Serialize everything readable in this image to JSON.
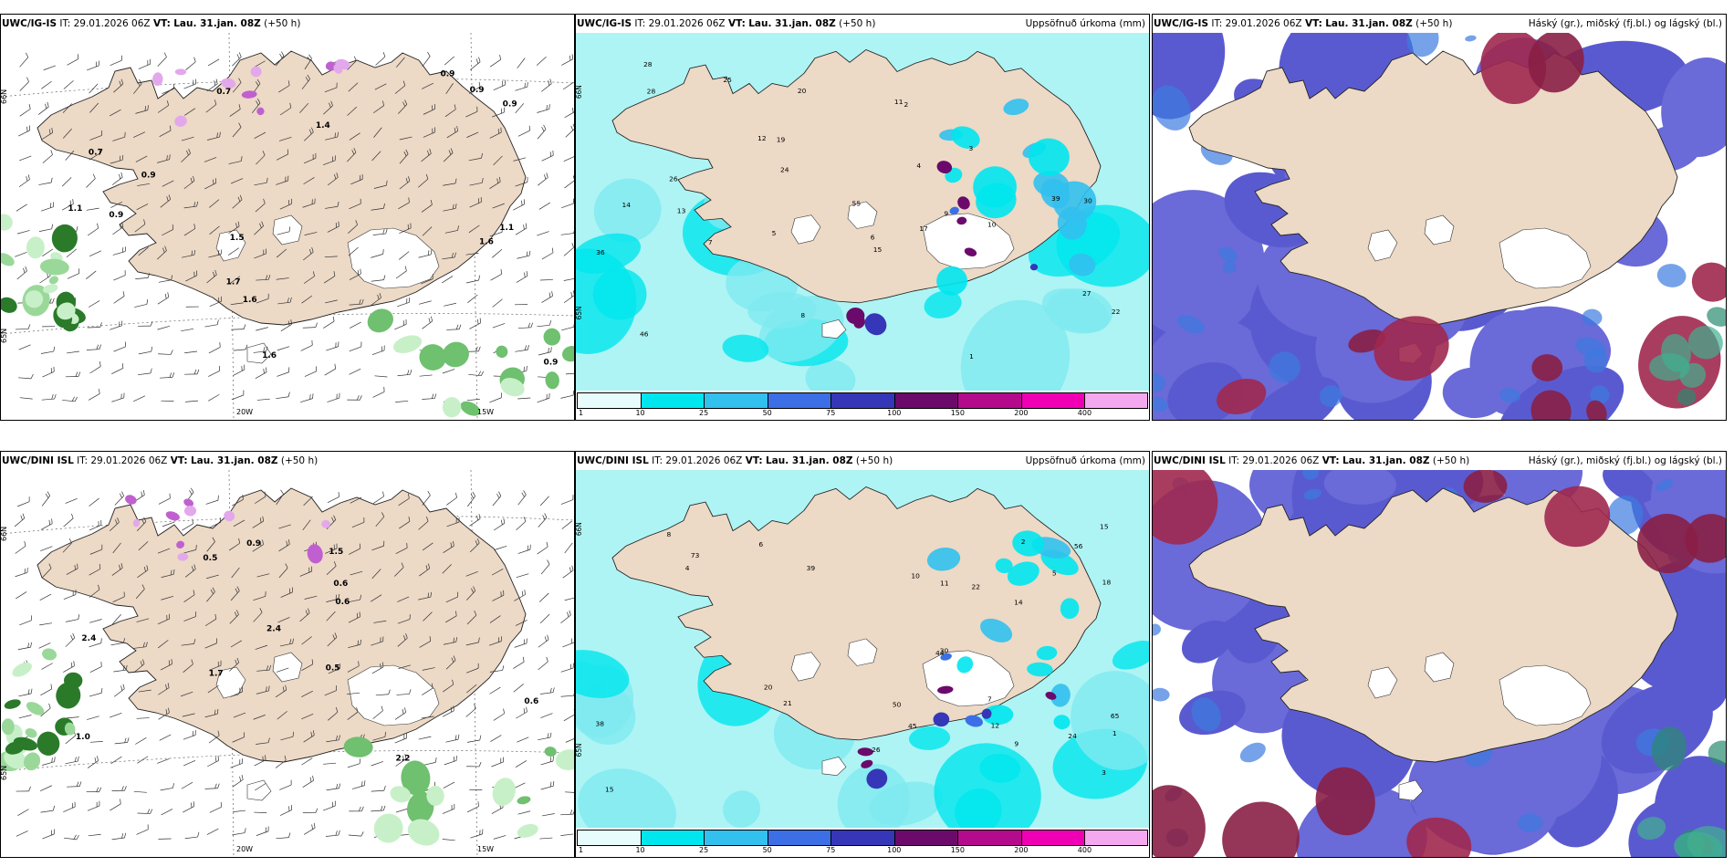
{
  "panels": [
    {
      "id": "ig-wind",
      "model": "UWC/IG-IS",
      "it_label": "IT: 29.01.2026 06Z",
      "vt_prefix": "VT:",
      "vt_value": "Lau. 31.jan. 08Z",
      "lead": "(+50 h)",
      "right_label": "",
      "axis_labels": [
        "66N",
        "65N",
        "20W",
        "15W"
      ],
      "value_labels": [
        "0.9",
        "1.6",
        "0.7",
        "0.9",
        "0.7",
        "1.4",
        "0.9",
        "1.1",
        "1.6",
        "1.5",
        "0.9",
        "1.7",
        "0.9",
        "0.9",
        "1.6",
        "1.1"
      ]
    },
    {
      "id": "ig-precip",
      "model": "UWC/IG-IS",
      "it_label": "IT: 29.01.2026 06Z",
      "vt_prefix": "VT:",
      "vt_value": "Lau. 31.jan. 08Z",
      "lead": "(+50 h)",
      "right_label": "Uppsöfnuð úrkoma (mm)",
      "axis_labels": [
        "66N",
        "65N"
      ],
      "value_labels": [
        "3",
        "2",
        "1",
        "4",
        "5",
        "11",
        "8",
        "10",
        "15",
        "20",
        "26",
        "27",
        "30",
        "39",
        "46",
        "19",
        "25",
        "24",
        "22",
        "17",
        "14",
        "13",
        "12",
        "6",
        "7",
        "9",
        "28",
        "55",
        "36",
        "28"
      ],
      "colorbar_labels": [
        "1",
        "10",
        "25",
        "50",
        "75",
        "100",
        "150",
        "200",
        "400"
      ]
    },
    {
      "id": "ig-cloud",
      "model": "UWC/IG-IS",
      "it_label": "IT: 29.01.2026 06Z",
      "vt_prefix": "VT:",
      "vt_value": "Lau. 31.jan. 08Z",
      "lead": "(+50 h)",
      "right_label": "Háský (gr.), miðský (fj.bl.) og lágský (bl.)"
    },
    {
      "id": "dini-wind",
      "model": "UWC/DINI ISL",
      "it_label": "IT: 29.01.2026 06Z",
      "vt_prefix": "VT:",
      "vt_value": "Lau. 31.jan. 08Z",
      "lead": "(+50 h)",
      "right_label": "",
      "axis_labels": [
        "66N",
        "65N",
        "20W",
        "15W"
      ],
      "value_labels": [
        "0.6",
        "1.7",
        "2.4",
        "2.2",
        "0.6",
        "0.5",
        "0.6",
        "0.9",
        "0.5",
        "1.5",
        "2.4",
        "1.0"
      ]
    },
    {
      "id": "dini-precip",
      "model": "UWC/DINI ISL",
      "it_label": "IT: 29.01.2026 06Z",
      "vt_prefix": "VT:",
      "vt_value": "Lau. 31.jan. 08Z",
      "lead": "(+50 h)",
      "right_label": "Uppsöfnuð úrkoma (mm)",
      "axis_labels": [
        "66N",
        "65N"
      ],
      "value_labels": [
        "2",
        "3",
        "4",
        "5",
        "6",
        "7",
        "8",
        "11",
        "12",
        "15",
        "20",
        "26",
        "30",
        "44",
        "39",
        "50",
        "18",
        "22",
        "15",
        "10",
        "14",
        "21",
        "24",
        "65",
        "56",
        "73",
        "45",
        "38",
        "9",
        "1"
      ],
      "colorbar_labels": [
        "1",
        "10",
        "25",
        "50",
        "75",
        "100",
        "150",
        "200",
        "400"
      ]
    },
    {
      "id": "dini-cloud",
      "model": "UWC/DINI ISL",
      "it_label": "IT: 29.01.2026 06Z",
      "vt_prefix": "VT:",
      "vt_value": "Lau. 31.jan. 08Z",
      "lead": "(+50 h)",
      "right_label": "Háský (gr.), miðský (fj.bl.) og lágský (bl.)"
    }
  ],
  "colors": {
    "land": "#ecd9c6",
    "ice": "#ffffff",
    "sea_precip": "#aef4f4",
    "colorbar": [
      "#e7fdfd",
      "#00e6ee",
      "#32c0ee",
      "#3c6fe6",
      "#3636b8",
      "#6b0a6b",
      "#b40a8c",
      "#f000b4",
      "#f4a8f0"
    ],
    "cloud_low": "#5a5ad0",
    "cloud_mid": "#3c7ae0",
    "cloud_high": "#8a1f45",
    "graupel_light": "#c8f0c8",
    "graupel_dark": "#2a7a2a",
    "snow_magenta": "#c060d0"
  }
}
